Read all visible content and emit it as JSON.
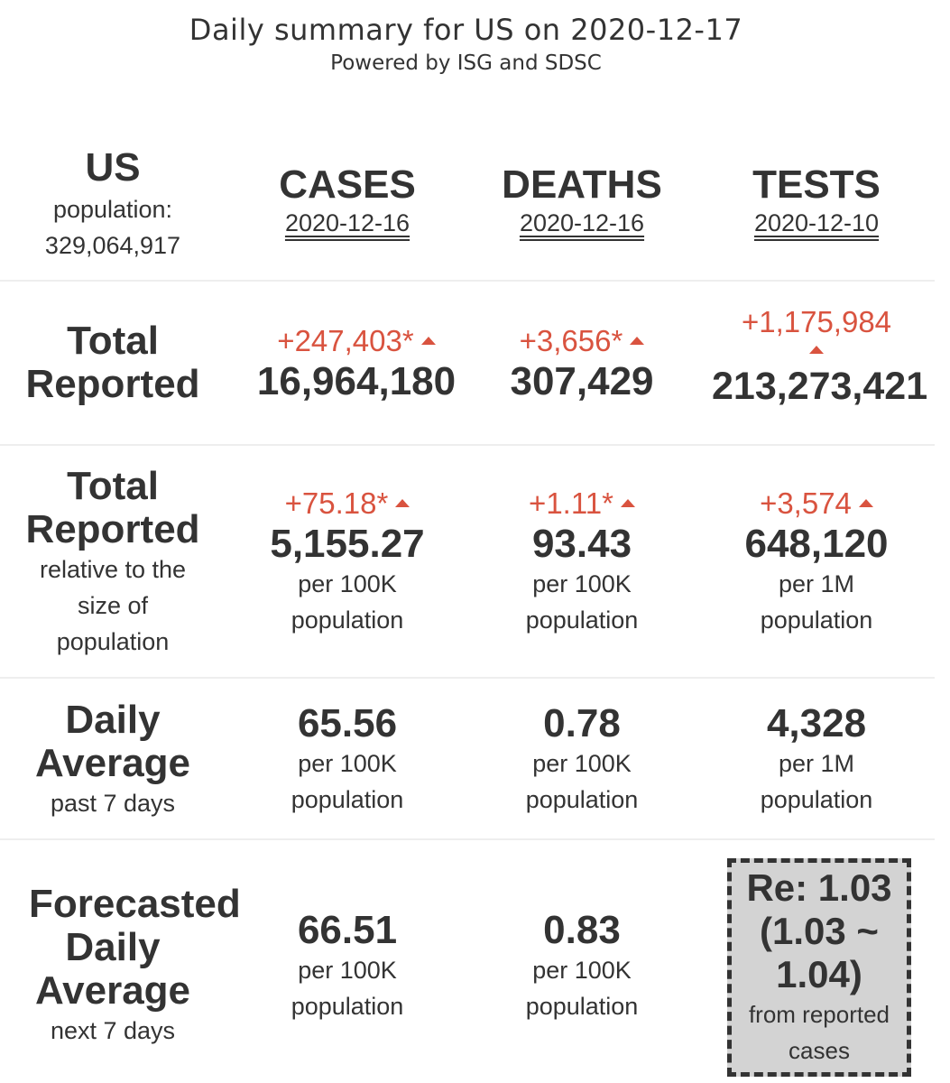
{
  "header": {
    "title": "Daily summary for US on 2020-12-17",
    "subtitle": "Powered by ISG and SDSC"
  },
  "region": {
    "name": "US",
    "population_label": "population:",
    "population": "329,064,917"
  },
  "columns": {
    "cases": {
      "label": "CASES",
      "date": "2020-12-16"
    },
    "deaths": {
      "label": "DEATHS",
      "date": "2020-12-16"
    },
    "tests": {
      "label": "TESTS",
      "date": "2020-12-10"
    }
  },
  "rows": {
    "total": {
      "label_line1": "Total",
      "label_line2": "Reported",
      "cases": {
        "delta": "+247,403*",
        "value": "16,964,180"
      },
      "deaths": {
        "delta": "+3,656*",
        "value": "307,429"
      },
      "tests": {
        "delta": "+1,175,984",
        "value": "213,273,421"
      }
    },
    "relative": {
      "label_line1": "Total",
      "label_line2": "Reported",
      "note1": "relative to the",
      "note2": "size of",
      "note3": "population",
      "cases": {
        "delta": "+75.18*",
        "value": "5,155.27",
        "unit1": "per 100K",
        "unit2": "population"
      },
      "deaths": {
        "delta": "+1.11*",
        "value": "93.43",
        "unit1": "per 100K",
        "unit2": "population"
      },
      "tests": {
        "delta": "+3,574",
        "value": "648,120",
        "unit1": "per 1M",
        "unit2": "population"
      }
    },
    "daily": {
      "label_line1": "Daily",
      "label_line2": "Average",
      "note": "past 7 days",
      "cases": {
        "value": "65.56",
        "unit1": "per 100K",
        "unit2": "population"
      },
      "deaths": {
        "value": "0.78",
        "unit1": "per 100K",
        "unit2": "population"
      },
      "tests": {
        "value": "4,328",
        "unit1": "per 1M",
        "unit2": "population"
      }
    },
    "forecast": {
      "label_line1": "Forecasted",
      "label_line2": "Daily",
      "label_line3": "Average",
      "note": "next 7 days",
      "cases": {
        "value": "66.51",
        "unit1": "per 100K",
        "unit2": "population"
      },
      "deaths": {
        "value": "0.83",
        "unit1": "per 100K",
        "unit2": "population"
      },
      "re": {
        "line1": "Re: 1.03",
        "line2": "(1.03 ~",
        "line3": "1.04)",
        "note1": "from reported",
        "note2": "cases"
      }
    }
  },
  "colors": {
    "increase": "#d9533f",
    "text": "#333333",
    "re_box_bg": "#d3d3d3"
  }
}
